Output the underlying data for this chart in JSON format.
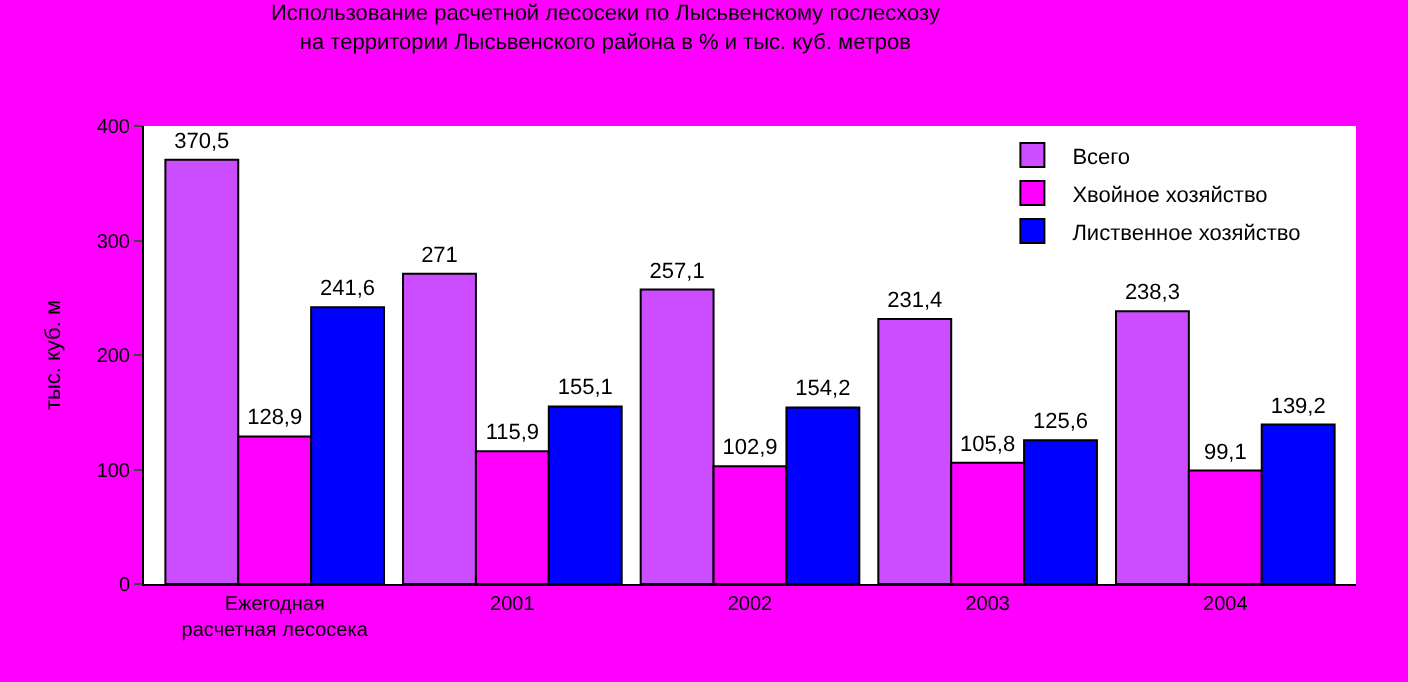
{
  "chart_data": {
    "type": "bar",
    "title": "Использование расчетной лесосеки по Лысьвенскому гослесхозу на территории Лысьвенского района в % и тыс. куб. метров",
    "ylabel": "тыс. куб. м",
    "categories": [
      "Ежегодная расчетная лесосека",
      "2001",
      "2002",
      "2003",
      "2004"
    ],
    "series": [
      {
        "name": "Всего",
        "color": "#cc4cff",
        "values": [
          370.5,
          271,
          257.1,
          231.4,
          238.3
        ],
        "value_labels": [
          "370,5",
          "271",
          "257,1",
          "231,4",
          "238,3"
        ]
      },
      {
        "name": "Хвойное хозяйство",
        "color": "#ff00ff",
        "values": [
          128.9,
          115.9,
          102.9,
          105.8,
          99.1
        ],
        "value_labels": [
          "128,9",
          "115,9",
          "102,9",
          "105,8",
          "99,1"
        ]
      },
      {
        "name": "Лиственное хозяйство",
        "color": "#0000ff",
        "values": [
          241.6,
          155.1,
          154.2,
          125.6,
          139.2
        ],
        "value_labels": [
          "241,6",
          "155,1",
          "154,2",
          "125,6",
          "139,2"
        ]
      }
    ],
    "ylim": [
      0,
      400
    ],
    "yticks": [
      0,
      100,
      200,
      300,
      400
    ],
    "grid": false,
    "legend": "top right"
  }
}
